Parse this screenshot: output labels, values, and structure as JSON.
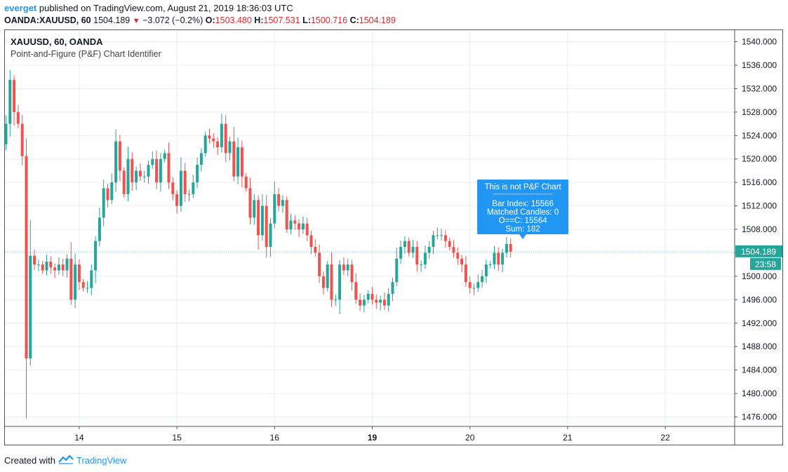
{
  "header": {
    "user": "everget",
    "published": "published on TradingView.com, August 21, 2019 18:36:03 UTC",
    "symbol": "OANDA:XAUUSD, 60",
    "last": "1504.189",
    "change": "−3.072 (−0.2%)",
    "o_label": "O:",
    "o": "1503.480",
    "h_label": "H:",
    "h": "1507.531",
    "l_label": "L:",
    "l": "1500.716",
    "c_label": "C:",
    "c": "1504.189"
  },
  "legend": {
    "symbol": "XAUUSD, 60, OANDA",
    "indicator": "Point-and-Figure (P&F) Chart Identifier"
  },
  "footer": {
    "created_with": "Created with",
    "brand": "TradingView"
  },
  "colors": {
    "up": "#26a69a",
    "down": "#ef5350",
    "accent": "#2196f3",
    "grid": "#e9eef2"
  },
  "chart_data": {
    "type": "candlestick",
    "ylim": [
      1474,
      1542
    ],
    "y_ticks": [
      "1540.000",
      "1536.000",
      "1532.000",
      "1528.000",
      "1524.000",
      "1520.000",
      "1516.000",
      "1512.000",
      "1508.000",
      "1504.000",
      "1500.000",
      "1496.000",
      "1492.000",
      "1488.000",
      "1484.000",
      "1480.000",
      "1476.000"
    ],
    "x_ticks": [
      {
        "label": "14",
        "bar": 18,
        "bold": false
      },
      {
        "label": "15",
        "bar": 42,
        "bold": false
      },
      {
        "label": "16",
        "bar": 66,
        "bold": false
      },
      {
        "label": "19",
        "bar": 90,
        "bold": true
      },
      {
        "label": "20",
        "bar": 114,
        "bold": false
      },
      {
        "label": "21",
        "bar": 138,
        "bold": false
      },
      {
        "label": "22",
        "bar": 162,
        "bold": false
      }
    ],
    "last_price": "1504.189",
    "countdown": "23:58",
    "bars": [
      1522.5,
      1526,
      1533.5,
      1528,
      1526,
      1520.5,
      1486,
      1503.5,
      1502,
      1502,
      1501,
      1502.5,
      1501.5,
      1501,
      1502,
      1501,
      1503,
      1496,
      1502,
      1499,
      1498,
      1498,
      1501,
      1506,
      1510,
      1515,
      1513,
      1516,
      1523,
      1518,
      1514,
      1520,
      1516,
      1518,
      1517,
      1517,
      1519,
      1520,
      1516,
      1520,
      1521,
      1516,
      1514,
      1512,
      1518,
      1514,
      1514,
      1516,
      1519,
      1521,
      1524,
      1523.5,
      1523,
      1522,
      1526,
      1521,
      1523,
      1517,
      1522,
      1517,
      1515,
      1510,
      1513,
      1507,
      1512,
      1505,
      1509,
      1514,
      1512,
      1513,
      1508,
      1509.5,
      1509,
      1508,
      1509,
      1507,
      1505,
      1504,
      1500,
      1498,
      1502,
      1496,
      1496,
      1502,
      1501,
      1502,
      1499,
      1496,
      1495,
      1496,
      1497,
      1496,
      1495.5,
      1496,
      1495,
      1497,
      1499,
      1503,
      1505,
      1506,
      1504,
      1505,
      1502,
      1502,
      1504,
      1505,
      1507,
      1507,
      1507,
      1506,
      1505,
      1504,
      1503,
      1502,
      1499,
      1498,
      1498,
      1499,
      1500,
      1502,
      1502,
      1504,
      1502,
      1504,
      1505.5,
      1504.189
    ],
    "tooltip": {
      "title": "This is not P&F Chart",
      "separator": "--------------------------------",
      "bar_index": "Bar Index: 15566",
      "matched": "Matched Candles: 0",
      "oc": "O==C: 15564",
      "sum": "Sum: 182",
      "bar": 127
    }
  }
}
